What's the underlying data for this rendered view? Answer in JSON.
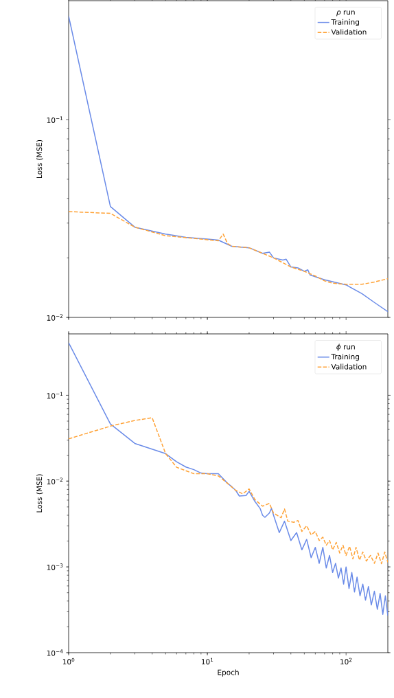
{
  "chart_data": [
    {
      "type": "line",
      "ylabel": "Loss (MSE)",
      "legend_title": "*ρ* run",
      "legend": "top right",
      "log": "xy",
      "tick_labels": "y",
      "xlim": [
        1,
        200
      ],
      "ylim": [
        0.01,
        0.4
      ],
      "xticks": [
        {
          "value": 1,
          "label": null
        },
        {
          "value": 10,
          "label": null
        },
        {
          "value": 100,
          "label": null
        }
      ],
      "yticks": [
        {
          "value": 0.01,
          "label": "10$^{−2}$"
        },
        {
          "value": 0.1,
          "label": "10$^{−1}$"
        }
      ],
      "series": [
        {
          "name": "Training",
          "color": "#6a8be8",
          "line_style": "solid",
          "x": [
            1,
            2,
            3,
            5,
            7,
            10,
            12,
            15,
            20,
            21,
            25,
            28,
            30,
            35,
            37,
            40,
            45,
            50,
            53,
            55,
            70,
            100,
            130,
            160,
            200
          ],
          "values": [
            0.334,
            0.0364,
            0.0286,
            0.0264,
            0.0254,
            0.0249,
            0.0246,
            0.0229,
            0.0225,
            0.0222,
            0.0211,
            0.0214,
            0.02,
            0.0195,
            0.0197,
            0.018,
            0.0178,
            0.0171,
            0.0174,
            0.0164,
            0.0155,
            0.0146,
            0.0132,
            0.0119,
            0.0107
          ]
        },
        {
          "name": "Validation",
          "color": "#ffa236",
          "line_style": "dashed",
          "x": [
            1,
            2,
            3,
            5,
            10,
            12,
            13,
            14,
            15,
            20,
            25,
            30,
            40,
            50,
            60,
            70,
            80,
            100,
            130,
            160,
            200
          ],
          "values": [
            0.0343,
            0.0336,
            0.0286,
            0.0259,
            0.0247,
            0.0244,
            0.0264,
            0.0236,
            0.0229,
            0.0225,
            0.0211,
            0.02,
            0.018,
            0.0171,
            0.0162,
            0.0153,
            0.0149,
            0.0147,
            0.0147,
            0.0151,
            0.0157
          ]
        }
      ]
    },
    {
      "type": "line",
      "xlabel": "Epoch",
      "ylabel": "Loss (MSE)",
      "legend_title": "*ϕ* run",
      "legend": "top right",
      "log": "xy",
      "xlim": [
        1,
        200
      ],
      "ylim": [
        0.0001,
        0.52
      ],
      "xticks": [
        {
          "value": 1,
          "label": "10$^{0}$"
        },
        {
          "value": 10,
          "label": "10$^{1}$"
        },
        {
          "value": 100,
          "label": "10$^{2}$"
        }
      ],
      "yticks": [
        {
          "value": 0.0001,
          "label": "10$^{−4}$"
        },
        {
          "value": 0.001,
          "label": "10$^{−3}$"
        },
        {
          "value": 0.01,
          "label": "10$^{−2}$"
        },
        {
          "value": 0.1,
          "label": "10$^{−1}$"
        }
      ],
      "series": [
        {
          "name": "Training",
          "color": "#6a8be8",
          "line_style": "solid",
          "x": [
            1,
            2,
            3,
            5,
            6,
            7,
            8,
            9,
            10,
            12,
            14,
            15,
            16,
            17,
            19,
            20,
            22,
            24,
            25,
            26,
            28,
            29,
            30,
            33,
            36,
            40,
            44,
            48,
            52,
            56,
            60,
            64,
            68,
            72,
            76,
            80,
            84,
            88,
            92,
            96,
            100,
            105,
            110,
            115,
            120,
            126,
            132,
            138,
            145,
            152,
            160,
            168,
            176,
            184,
            192,
            200
          ],
          "values": [
            0.41,
            0.0464,
            0.0275,
            0.0209,
            0.0168,
            0.0146,
            0.0136,
            0.0124,
            0.0122,
            0.0122,
            0.0094,
            0.0086,
            0.0078,
            0.0067,
            0.0068,
            0.0076,
            0.0058,
            0.0048,
            0.004,
            0.00378,
            0.00424,
            0.0048,
            0.004,
            0.00251,
            0.00341,
            0.00203,
            0.00251,
            0.00158,
            0.00209,
            0.00128,
            0.00169,
            0.0011,
            0.00169,
            0.00097,
            0.00136,
            0.00086,
            0.0011,
            0.00074,
            0.00097,
            0.00063,
            0.001,
            0.00056,
            0.00086,
            0.00051,
            0.00076,
            0.00046,
            0.00063,
            0.00041,
            0.00059,
            0.00036,
            0.00052,
            0.00032,
            0.00049,
            0.00028,
            0.00046,
            0.00027
          ]
        },
        {
          "name": "Validation",
          "color": "#ffa236",
          "line_style": "dashed",
          "x": [
            1,
            2,
            3,
            4,
            5,
            6,
            7,
            8,
            10,
            12,
            14,
            16,
            18,
            20,
            22,
            25,
            28,
            30,
            34,
            36,
            38,
            42,
            45,
            48,
            52,
            56,
            60,
            64,
            68,
            72,
            76,
            80,
            85,
            90,
            95,
            100,
            106,
            112,
            118,
            125,
            132,
            140,
            150,
            160,
            170,
            180,
            190,
            200
          ],
          "values": [
            0.0311,
            0.0437,
            0.0509,
            0.0548,
            0.0209,
            0.0145,
            0.0132,
            0.0122,
            0.0122,
            0.0115,
            0.0094,
            0.0078,
            0.0071,
            0.0081,
            0.0061,
            0.0051,
            0.0055,
            0.00424,
            0.00374,
            0.00473,
            0.00341,
            0.00331,
            0.00347,
            0.00259,
            0.00302,
            0.00236,
            0.00259,
            0.00203,
            0.00222,
            0.00179,
            0.00203,
            0.00158,
            0.00193,
            0.00145,
            0.00179,
            0.00136,
            0.00174,
            0.00124,
            0.00169,
            0.0012,
            0.00149,
            0.00117,
            0.00136,
            0.0011,
            0.00145,
            0.00109,
            0.00149,
            0.00113
          ]
        }
      ]
    }
  ]
}
